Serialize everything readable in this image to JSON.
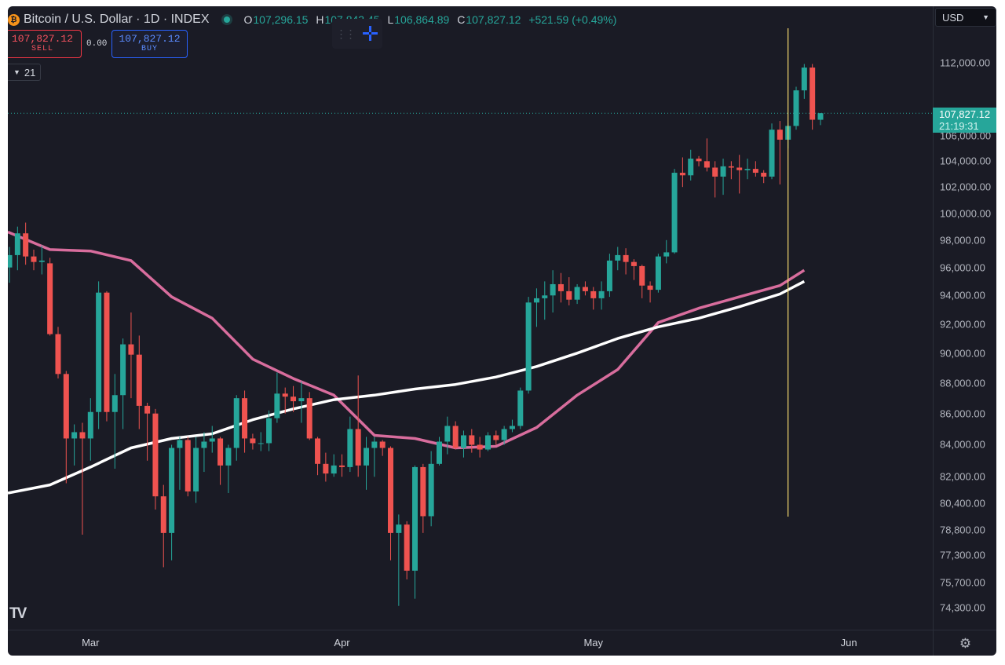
{
  "header": {
    "coin_icon": "bitcoin-icon",
    "coin_glyph": "₿",
    "title": "Bitcoin / U.S. Dollar · 1D · INDEX",
    "ohlc": {
      "o_label": "O",
      "o": "107,296.15",
      "h_label": "H",
      "h": "107,843.45",
      "l_label": "L",
      "l": "106,864.89",
      "c_label": "C",
      "c": "107,827.12",
      "change": "+521.59 (+0.49%)"
    }
  },
  "trade": {
    "sell_price": "107,827.12",
    "sell_label": "SELL",
    "spread": "0.00",
    "buy_price": "107,827.12",
    "buy_label": "BUY"
  },
  "indicator_toggle": {
    "icon": "chevron-down-icon",
    "label": "21"
  },
  "toolbar": {
    "icon": "crosshair-icon"
  },
  "currency": {
    "label": "USD",
    "icon": "chevron-down-icon"
  },
  "price_axis": {
    "ticks": [
      "112,000.00",
      "106,000.00",
      "104,000.00",
      "102,000.00",
      "100,000.00",
      "98,000.00",
      "96,000.00",
      "94,000.00",
      "92,000.00",
      "90,000.00",
      "88,000.00",
      "86,000.00",
      "84,000.00",
      "82,000.00",
      "80,400.00",
      "78,800.00",
      "77,300.00",
      "75,700.00",
      "74,300.00"
    ],
    "current_price": "107,827.12",
    "countdown": "21:19:31"
  },
  "time_axis": {
    "labels": [
      "Mar",
      "Apr",
      "May",
      "Jun"
    ]
  },
  "settings_icon": "gear-icon",
  "logo": "TV",
  "colors": {
    "background": "#1a1b25",
    "up": "#26a69a",
    "down": "#ef5350",
    "ma_fast": "#d86d9d",
    "ma_slow": "#ffffff",
    "vline": "#f5d76e"
  },
  "chart_data": {
    "type": "candlestick",
    "symbol": "BTCUSD",
    "interval": "1D",
    "scale": "log",
    "grid": false,
    "ylim": [
      73000,
      116000
    ],
    "candles": [
      {
        "o": 96000,
        "h": 97500,
        "l": 94900,
        "c": 96900
      },
      {
        "o": 96900,
        "h": 99000,
        "l": 95800,
        "c": 98500
      },
      {
        "o": 98500,
        "h": 99300,
        "l": 96200,
        "c": 96800
      },
      {
        "o": 96800,
        "h": 97300,
        "l": 95800,
        "c": 96400
      },
      {
        "o": 96400,
        "h": 97600,
        "l": 95500,
        "c": 96500
      },
      {
        "o": 96300,
        "h": 96700,
        "l": 91200,
        "c": 91300
      },
      {
        "o": 91300,
        "h": 91800,
        "l": 88300,
        "c": 88600
      },
      {
        "o": 88600,
        "h": 88800,
        "l": 81600,
        "c": 84400
      },
      {
        "o": 84400,
        "h": 85300,
        "l": 82700,
        "c": 84800
      },
      {
        "o": 84800,
        "h": 85400,
        "l": 78500,
        "c": 84400
      },
      {
        "o": 84400,
        "h": 87000,
        "l": 83000,
        "c": 86100
      },
      {
        "o": 86100,
        "h": 95000,
        "l": 85000,
        "c": 94200
      },
      {
        "o": 94200,
        "h": 94300,
        "l": 85500,
        "c": 86100
      },
      {
        "o": 86100,
        "h": 88600,
        "l": 82500,
        "c": 87200
      },
      {
        "o": 87200,
        "h": 91000,
        "l": 85000,
        "c": 90600
      },
      {
        "o": 90600,
        "h": 92800,
        "l": 87000,
        "c": 89900
      },
      {
        "o": 89900,
        "h": 91200,
        "l": 85000,
        "c": 86500
      },
      {
        "o": 86500,
        "h": 86700,
        "l": 83000,
        "c": 86000
      },
      {
        "o": 86000,
        "h": 86300,
        "l": 80000,
        "c": 80800
      },
      {
        "o": 80800,
        "h": 81500,
        "l": 76600,
        "c": 78600
      },
      {
        "o": 78600,
        "h": 84000,
        "l": 77000,
        "c": 83800
      },
      {
        "o": 83800,
        "h": 84500,
        "l": 81200,
        "c": 84300
      },
      {
        "o": 84300,
        "h": 84500,
        "l": 80800,
        "c": 81100
      },
      {
        "o": 81100,
        "h": 84500,
        "l": 80400,
        "c": 83800
      },
      {
        "o": 83800,
        "h": 84800,
        "l": 82300,
        "c": 84200
      },
      {
        "o": 84200,
        "h": 85200,
        "l": 83500,
        "c": 84400
      },
      {
        "o": 84400,
        "h": 84500,
        "l": 81500,
        "c": 82700
      },
      {
        "o": 82700,
        "h": 84000,
        "l": 81000,
        "c": 83800
      },
      {
        "o": 83800,
        "h": 87200,
        "l": 83000,
        "c": 87000
      },
      {
        "o": 87000,
        "h": 87500,
        "l": 83500,
        "c": 84400
      },
      {
        "o": 84400,
        "h": 84700,
        "l": 83700,
        "c": 84100
      },
      {
        "o": 84100,
        "h": 84800,
        "l": 83600,
        "c": 84100
      },
      {
        "o": 84100,
        "h": 86200,
        "l": 83600,
        "c": 85700
      },
      {
        "o": 85700,
        "h": 88700,
        "l": 85400,
        "c": 87300
      },
      {
        "o": 87300,
        "h": 87700,
        "l": 86000,
        "c": 87100
      },
      {
        "o": 87100,
        "h": 87800,
        "l": 86100,
        "c": 86800
      },
      {
        "o": 86800,
        "h": 88100,
        "l": 85400,
        "c": 87000
      },
      {
        "o": 87000,
        "h": 87400,
        "l": 84300,
        "c": 84400
      },
      {
        "o": 84400,
        "h": 84500,
        "l": 82100,
        "c": 82800
      },
      {
        "o": 82800,
        "h": 83500,
        "l": 81700,
        "c": 82200
      },
      {
        "o": 82200,
        "h": 83400,
        "l": 82000,
        "c": 82700
      },
      {
        "o": 82700,
        "h": 83400,
        "l": 82000,
        "c": 82600
      },
      {
        "o": 82600,
        "h": 85800,
        "l": 82300,
        "c": 85000
      },
      {
        "o": 85000,
        "h": 88500,
        "l": 82000,
        "c": 82700
      },
      {
        "o": 82700,
        "h": 84500,
        "l": 81200,
        "c": 83800
      },
      {
        "o": 83800,
        "h": 84500,
        "l": 82000,
        "c": 84200
      },
      {
        "o": 84200,
        "h": 84300,
        "l": 83300,
        "c": 83800
      },
      {
        "o": 83800,
        "h": 83900,
        "l": 77000,
        "c": 78600
      },
      {
        "o": 78600,
        "h": 79700,
        "l": 74400,
        "c": 79100
      },
      {
        "o": 79100,
        "h": 79300,
        "l": 75900,
        "c": 76400
      },
      {
        "o": 76400,
        "h": 82700,
        "l": 74800,
        "c": 82600
      },
      {
        "o": 82600,
        "h": 82800,
        "l": 78600,
        "c": 79600
      },
      {
        "o": 79600,
        "h": 83600,
        "l": 79000,
        "c": 82800
      },
      {
        "o": 82800,
        "h": 84500,
        "l": 82700,
        "c": 84200
      },
      {
        "o": 84200,
        "h": 85800,
        "l": 83400,
        "c": 85200
      },
      {
        "o": 85200,
        "h": 85500,
        "l": 83700,
        "c": 83800
      },
      {
        "o": 83800,
        "h": 84900,
        "l": 83200,
        "c": 84600
      },
      {
        "o": 84600,
        "h": 85000,
        "l": 83500,
        "c": 84000
      },
      {
        "o": 84000,
        "h": 84500,
        "l": 83200,
        "c": 83700
      },
      {
        "o": 83700,
        "h": 84800,
        "l": 83600,
        "c": 84600
      },
      {
        "o": 84600,
        "h": 84900,
        "l": 84000,
        "c": 84300
      },
      {
        "o": 84300,
        "h": 85200,
        "l": 84000,
        "c": 85000
      },
      {
        "o": 85000,
        "h": 85600,
        "l": 84800,
        "c": 85200
      },
      {
        "o": 85200,
        "h": 87700,
        "l": 85000,
        "c": 87500
      },
      {
        "o": 87500,
        "h": 93900,
        "l": 87300,
        "c": 93500
      },
      {
        "o": 93500,
        "h": 94500,
        "l": 91800,
        "c": 93800
      },
      {
        "o": 93800,
        "h": 95000,
        "l": 92300,
        "c": 94000
      },
      {
        "o": 94000,
        "h": 95800,
        "l": 92800,
        "c": 94800
      },
      {
        "o": 94800,
        "h": 95600,
        "l": 93500,
        "c": 94300
      },
      {
        "o": 94300,
        "h": 95300,
        "l": 93300,
        "c": 93700
      },
      {
        "o": 93700,
        "h": 94800,
        "l": 93400,
        "c": 94600
      },
      {
        "o": 94600,
        "h": 95000,
        "l": 94000,
        "c": 94300
      },
      {
        "o": 94300,
        "h": 94600,
        "l": 93000,
        "c": 93800
      },
      {
        "o": 93800,
        "h": 95000,
        "l": 93000,
        "c": 94300
      },
      {
        "o": 94300,
        "h": 97000,
        "l": 93900,
        "c": 96500
      },
      {
        "o": 96500,
        "h": 97500,
        "l": 95800,
        "c": 96900
      },
      {
        "o": 96900,
        "h": 97400,
        "l": 95500,
        "c": 96400
      },
      {
        "o": 96400,
        "h": 96600,
        "l": 95100,
        "c": 96100
      },
      {
        "o": 96100,
        "h": 96200,
        "l": 93800,
        "c": 94700
      },
      {
        "o": 94700,
        "h": 95000,
        "l": 93500,
        "c": 94400
      },
      {
        "o": 94400,
        "h": 97000,
        "l": 94200,
        "c": 96800
      },
      {
        "o": 96800,
        "h": 98000,
        "l": 96300,
        "c": 97100
      },
      {
        "o": 97100,
        "h": 103400,
        "l": 97000,
        "c": 103100
      },
      {
        "o": 103100,
        "h": 104300,
        "l": 102000,
        "c": 102900
      },
      {
        "o": 102900,
        "h": 104900,
        "l": 102500,
        "c": 104200
      },
      {
        "o": 104200,
        "h": 104400,
        "l": 103600,
        "c": 104000
      },
      {
        "o": 104000,
        "h": 105800,
        "l": 103200,
        "c": 103500
      },
      {
        "o": 103500,
        "h": 104000,
        "l": 101200,
        "c": 102800
      },
      {
        "o": 102800,
        "h": 104200,
        "l": 101400,
        "c": 103600
      },
      {
        "o": 103600,
        "h": 104000,
        "l": 102600,
        "c": 103500
      },
      {
        "o": 103500,
        "h": 104500,
        "l": 101500,
        "c": 103300
      },
      {
        "o": 103300,
        "h": 104200,
        "l": 102600,
        "c": 103400
      },
      {
        "o": 103400,
        "h": 104000,
        "l": 102800,
        "c": 103100
      },
      {
        "o": 103100,
        "h": 103300,
        "l": 102300,
        "c": 102800
      },
      {
        "o": 102800,
        "h": 107000,
        "l": 102600,
        "c": 106500
      },
      {
        "o": 106500,
        "h": 107200,
        "l": 102200,
        "c": 105700
      },
      {
        "o": 105700,
        "h": 107000,
        "l": 105000,
        "c": 106800
      },
      {
        "o": 106800,
        "h": 110000,
        "l": 106500,
        "c": 109700
      },
      {
        "o": 109700,
        "h": 111900,
        "l": 109000,
        "c": 111600
      },
      {
        "o": 111600,
        "h": 111900,
        "l": 106500,
        "c": 107300
      },
      {
        "o": 107296.15,
        "h": 107843.45,
        "l": 106864.89,
        "c": 107827.12
      }
    ],
    "series": [
      {
        "name": "",
        "color": "#d86d9d",
        "x": [
          0,
          5,
          10,
          15,
          20,
          25,
          30,
          35,
          40,
          45,
          50,
          55,
          60,
          65,
          70,
          75,
          80,
          85,
          90,
          95,
          98
        ],
        "values": [
          98600,
          97300,
          97200,
          96500,
          93900,
          92400,
          89600,
          88300,
          87200,
          84600,
          84400,
          83800,
          83900,
          85100,
          87200,
          88900,
          92100,
          93100,
          93900,
          94700,
          95800
        ]
      },
      {
        "name": "",
        "color": "#ffffff",
        "x": [
          0,
          5,
          10,
          15,
          20,
          25,
          30,
          35,
          40,
          45,
          50,
          55,
          60,
          65,
          70,
          75,
          80,
          85,
          90,
          95,
          98
        ],
        "values": [
          81000,
          81500,
          82600,
          83800,
          84400,
          84700,
          85600,
          86300,
          86900,
          87200,
          87600,
          87900,
          88400,
          89100,
          90000,
          91000,
          91800,
          92400,
          93200,
          94100,
          95000
        ]
      }
    ],
    "marker_index": 96
  }
}
